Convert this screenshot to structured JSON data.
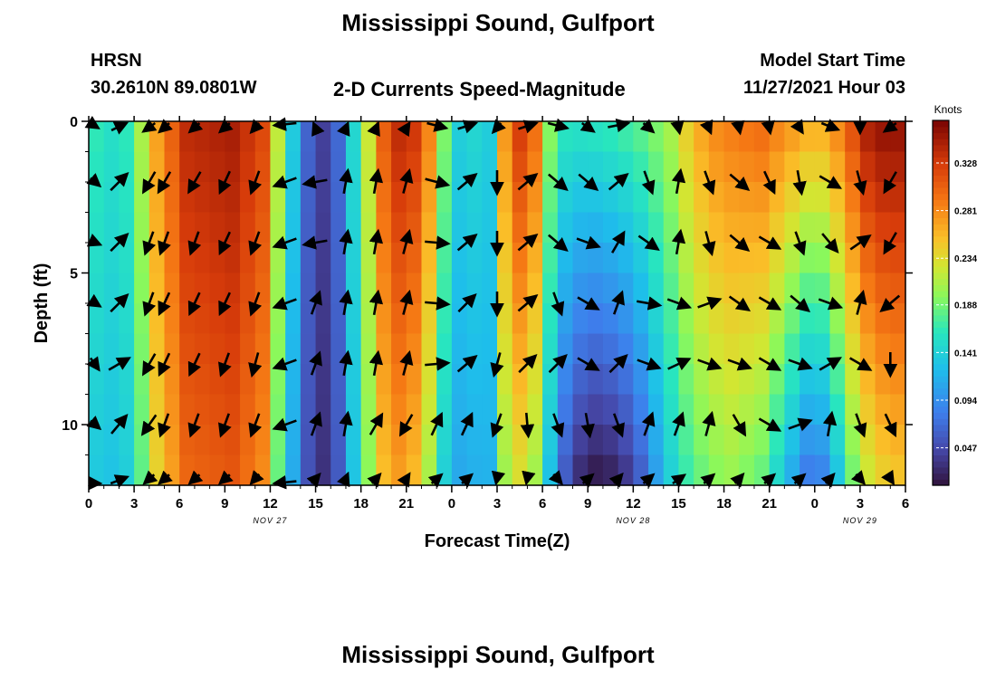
{
  "header": {
    "title": "Mississippi Sound, Gulfport",
    "station": "HRSN",
    "coordinates": "30.2610N  89.0801W",
    "subtitle": "2-D Currents Speed-Magnitude",
    "model_start_label": "Model Start Time",
    "model_start_time": "11/27/2021 Hour 03"
  },
  "footer": {
    "title": "Mississippi Sound, Gulfport"
  },
  "chart_data": {
    "type": "heatmap",
    "xlabel": "Forecast Time(Z)",
    "ylabel": "Depth (ft)",
    "x_tick_labels": [
      "0",
      "3",
      "6",
      "9",
      "12",
      "15",
      "18",
      "21",
      "0",
      "3",
      "6",
      "9",
      "12",
      "15",
      "18",
      "21",
      "0",
      "3",
      "6"
    ],
    "x_range_hours": [
      0,
      54
    ],
    "date_labels": [
      {
        "text": "NOV 27",
        "hour": 12
      },
      {
        "text": "NOV 28",
        "hour": 36
      },
      {
        "text": "NOV 29",
        "hour": 51
      }
    ],
    "y_tick_labels": [
      "0",
      "5",
      "10"
    ],
    "y_ticks": [
      0,
      5,
      10
    ],
    "ylim": [
      0,
      12
    ],
    "y_inverted": true,
    "colorbar": {
      "label": "Knots",
      "ticks": [
        0.047,
        0.094,
        0.141,
        0.188,
        0.234,
        0.281,
        0.328
      ],
      "tick_labels": [
        "0.047",
        "0.094",
        "0.141",
        "0.188",
        "0.234",
        "0.281",
        "0.328"
      ],
      "range": [
        0.01,
        0.37
      ]
    },
    "speed_profile": {
      "hours": [
        0,
        0.9,
        2.1,
        3.0,
        4.5,
        6.5,
        9.5,
        11.5,
        12.3,
        13.0,
        13.9,
        14.7,
        15.6,
        16.4,
        17.0,
        17.8,
        18.7,
        19.3,
        20.5,
        21.8,
        22.6,
        23.3,
        23.9,
        24.5,
        25.3,
        26.1,
        26.8,
        27.4,
        28.4,
        29.4,
        30.0,
        30.7,
        31.6,
        33.0,
        35.0,
        36.3,
        37.2,
        38.5,
        39.7,
        41.0,
        42.5,
        44.5,
        46.2,
        47.2,
        48.0,
        48.9,
        49.7,
        50.6,
        51.5,
        52.5,
        54.0
      ],
      "speed_surface": [
        0.17,
        0.16,
        0.15,
        0.18,
        0.27,
        0.34,
        0.35,
        0.32,
        0.24,
        0.17,
        0.11,
        0.05,
        0.04,
        0.06,
        0.11,
        0.17,
        0.24,
        0.3,
        0.34,
        0.33,
        0.28,
        0.21,
        0.16,
        0.14,
        0.16,
        0.11,
        0.16,
        0.27,
        0.33,
        0.31,
        0.24,
        0.18,
        0.16,
        0.16,
        0.17,
        0.18,
        0.19,
        0.21,
        0.25,
        0.28,
        0.29,
        0.3,
        0.28,
        0.27,
        0.26,
        0.27,
        0.29,
        0.32,
        0.35,
        0.36,
        0.36
      ],
      "speed_bottom": [
        0.14,
        0.13,
        0.13,
        0.15,
        0.24,
        0.3,
        0.31,
        0.28,
        0.2,
        0.14,
        0.09,
        0.04,
        0.03,
        0.05,
        0.1,
        0.15,
        0.21,
        0.25,
        0.27,
        0.25,
        0.2,
        0.15,
        0.12,
        0.11,
        0.12,
        0.1,
        0.13,
        0.2,
        0.23,
        0.21,
        0.17,
        0.11,
        0.05,
        0.01,
        0.02,
        0.05,
        0.09,
        0.14,
        0.17,
        0.19,
        0.2,
        0.18,
        0.12,
        0.08,
        0.07,
        0.09,
        0.14,
        0.19,
        0.22,
        0.24,
        0.25
      ]
    },
    "vectors": {
      "hours": [
        0,
        2,
        4,
        5,
        7,
        9,
        11,
        13,
        15,
        17,
        19,
        21,
        23,
        25,
        27,
        29,
        31,
        33,
        35,
        37,
        39,
        41,
        43,
        45,
        47,
        49,
        51,
        53
      ],
      "depths": [
        0,
        2,
        4,
        6,
        8,
        10,
        12
      ],
      "directions_deg": [
        [
          125,
          40,
          210,
          205,
          205,
          205,
          200,
          250,
          350,
          10,
          10,
          15,
          125,
          50,
          200,
          50,
          125,
          150,
          60,
          155,
          175,
          170,
          175,
          175,
          165,
          135,
          180,
          210
        ],
        [
          110,
          45,
          210,
          210,
          210,
          205,
          200,
          250,
          260,
          10,
          10,
          15,
          105,
          50,
          180,
          50,
          130,
          130,
          50,
          160,
          10,
          160,
          130,
          155,
          170,
          120,
          165,
          210
        ],
        [
          100,
          45,
          200,
          200,
          200,
          205,
          200,
          250,
          260,
          10,
          10,
          15,
          95,
          50,
          180,
          50,
          130,
          110,
          30,
          125,
          10,
          165,
          130,
          120,
          160,
          140,
          55,
          210
        ],
        [
          105,
          45,
          200,
          205,
          205,
          205,
          200,
          250,
          20,
          10,
          10,
          15,
          95,
          45,
          180,
          50,
          160,
          120,
          20,
          100,
          110,
          70,
          125,
          120,
          130,
          110,
          15,
          230
        ],
        [
          120,
          60,
          210,
          205,
          205,
          200,
          195,
          250,
          20,
          10,
          10,
          15,
          85,
          50,
          195,
          45,
          45,
          120,
          45,
          110,
          65,
          110,
          110,
          120,
          110,
          60,
          120,
          180
        ],
        [
          110,
          40,
          215,
          200,
          200,
          200,
          200,
          250,
          20,
          10,
          30,
          210,
          25,
          25,
          200,
          175,
          160,
          170,
          160,
          20,
          20,
          15,
          150,
          120,
          70,
          10,
          160,
          155
        ],
        [
          100,
          45,
          205,
          205,
          205,
          205,
          200,
          250,
          20,
          10,
          20,
          15,
          25,
          25,
          185,
          185,
          160,
          25,
          20,
          25,
          30,
          25,
          20,
          25,
          25,
          20,
          160,
          165
        ]
      ]
    }
  }
}
